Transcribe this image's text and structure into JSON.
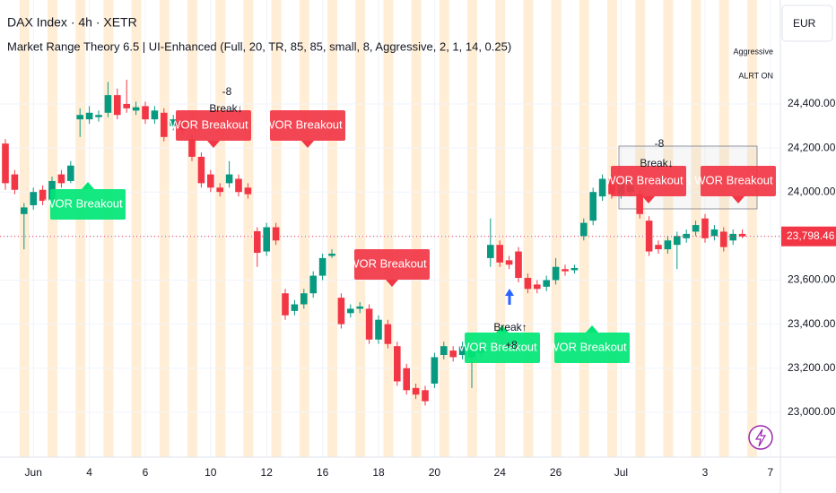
{
  "chart_data": {
    "type": "candlestick",
    "title": "DAX Index · 4h · XETR",
    "subtitle": "Market Range Theory 6.5 | UI-Enhanced (Full, 20, TR, 85, 85, small, 8, Aggressive, 2, 1, 14, 0.25)",
    "currency": "EUR",
    "status_labels": [
      "Aggressive",
      "ALRT ON"
    ],
    "up_color": "#089981",
    "down_color": "#f23645",
    "grid": true,
    "categories": [
      null,
      null,
      null,
      "Jun",
      null,
      null,
      null,
      null,
      null,
      "4",
      null,
      null,
      null,
      null,
      null,
      "6",
      null,
      null,
      null,
      null,
      null,
      null,
      "10",
      null,
      null,
      null,
      null,
      null,
      "12",
      null,
      null,
      null,
      null,
      null,
      "16",
      null,
      null,
      null,
      null,
      null,
      "18",
      null,
      null,
      null,
      null,
      null,
      "20",
      null,
      null,
      null,
      null,
      null,
      null,
      "24",
      null,
      null,
      null,
      null,
      null,
      "26",
      null,
      null,
      null,
      null,
      null,
      null,
      "Jul",
      null,
      null,
      null,
      null,
      null,
      null,
      null,
      null,
      "3",
      null,
      null,
      null,
      null,
      null,
      null,
      "7"
    ],
    "open": [
      24220,
      24080,
      23900,
      23940,
      24010,
      23960,
      24080,
      24050,
      24330,
      24330,
      24340,
      24360,
      24440,
      24400,
      24370,
      24390,
      24330,
      24360,
      24300,
      24310,
      24240,
      24160,
      24080,
      24020,
      24040,
      24060,
      24020,
      23822,
      23730,
      23840,
      23540,
      23460,
      23490,
      23540,
      23620,
      23710,
      23520,
      23450,
      23470,
      23470,
      23330,
      23400,
      23300,
      23200,
      23110,
      23100,
      23130,
      23260,
      23280,
      23260,
      23250,
      23270,
      23700,
      23760,
      23690,
      23730,
      23610,
      23580,
      23570,
      23600,
      23650,
      23645,
      23800,
      23870,
      23980,
      24060,
      23990,
      24000,
      23990,
      23870,
      23760,
      23740,
      23760,
      23790,
      23820,
      23880,
      23800,
      23820,
      23780,
      23810,
      null,
      null,
      null
    ],
    "high": [
      24240,
      24100,
      23950,
      24020,
      24030,
      24070,
      24100,
      24140,
      24380,
      24390,
      24370,
      24500,
      24470,
      24510,
      24410,
      24410,
      24390,
      24380,
      24350,
      24330,
      24260,
      24180,
      24100,
      24040,
      24140,
      24080,
      24040,
      23840,
      23860,
      23860,
      23560,
      23510,
      23560,
      23640,
      23720,
      23740,
      23540,
      23490,
      23500,
      23490,
      23440,
      23420,
      23320,
      23220,
      23130,
      23120,
      23270,
      23320,
      23300,
      23320,
      23300,
      23320,
      23880,
      23780,
      23710,
      23750,
      23630,
      23600,
      23620,
      23700,
      23670,
      23670,
      23880,
      24020,
      24080,
      24080,
      24060,
      24050,
      24010,
      23890,
      23780,
      23800,
      23820,
      23830,
      23870,
      23900,
      23850,
      23840,
      23830,
      23830,
      null,
      null,
      null
    ],
    "low": [
      24010,
      23990,
      23740,
      23920,
      23940,
      23950,
      24020,
      24040,
      24250,
      24310,
      24320,
      24340,
      24330,
      24360,
      24350,
      24310,
      24310,
      24230,
      24280,
      24260,
      24140,
      24020,
      24000,
      23980,
      24020,
      23980,
      23970,
      23660,
      23710,
      23760,
      23420,
      23440,
      23470,
      23520,
      23600,
      23700,
      23380,
      23430,
      23450,
      23310,
      23310,
      23290,
      23120,
      23080,
      23060,
      23030,
      23110,
      23240,
      23230,
      23240,
      23110,
      23250,
      23660,
      23660,
      23650,
      23590,
      23540,
      23540,
      23550,
      23580,
      23620,
      23630,
      23780,
      23850,
      23960,
      23970,
      23970,
      23980,
      23880,
      23710,
      23720,
      23720,
      23650,
      23770,
      23800,
      23770,
      23780,
      23730,
      23760,
      23790,
      null,
      null,
      null
    ],
    "close": [
      24040,
      24010,
      23930,
      24000,
      23960,
      24050,
      24040,
      24120,
      24350,
      24360,
      24350,
      24440,
      24350,
      24380,
      24385,
      24330,
      24370,
      24250,
      24330,
      24280,
      24160,
      24040,
      24020,
      24000,
      24080,
      24000,
      23990,
      23724,
      23840,
      23780,
      23440,
      23490,
      23540,
      23620,
      23700,
      23720,
      23400,
      23470,
      23480,
      23330,
      23420,
      23310,
      23140,
      23100,
      23080,
      23050,
      23250,
      23300,
      23250,
      23300,
      23280,
      23300,
      23760,
      23680,
      23670,
      23610,
      23560,
      23560,
      23600,
      23660,
      23640,
      23655,
      23860,
      24000,
      24060,
      23990,
      24040,
      24030,
      23900,
      23730,
      23740,
      23780,
      23800,
      23810,
      23850,
      23790,
      23830,
      23750,
      23810,
      23798.46,
      null,
      null,
      null
    ],
    "ylim": [
      22796,
      24872
    ],
    "yticks": [
      {
        "value": 23000,
        "label": "23,000.00"
      },
      {
        "value": 23200,
        "label": "23,200.00"
      },
      {
        "value": 23400,
        "label": "23,400.00"
      },
      {
        "value": 23600,
        "label": "23,600.00"
      },
      {
        "value": 23800,
        "label": "23,800.00"
      },
      {
        "value": 24000,
        "label": "24,000.00"
      },
      {
        "value": 24200,
        "label": "24,200.00"
      },
      {
        "value": 24400,
        "label": "24,400.00"
      }
    ],
    "last_price": {
      "value": 23798.46,
      "label": "23,798.46"
    },
    "annotations": [
      {
        "text": "WOR Breakout ↑",
        "color": "#00e676"
      },
      {
        "text": "WOR Breakout ↓",
        "color": "#f23645"
      },
      {
        "text": "WOR Breakout ↓",
        "color": "#f23645"
      },
      {
        "text": "WOR Breakout ↓",
        "color": "#f23645"
      },
      {
        "text": "WOR Breakout ↑",
        "color": "#00e676"
      },
      {
        "text": "WOR Breakout ↑",
        "color": "#00e676"
      },
      {
        "text": "WOR Breakout ↓",
        "color": "#f23645"
      },
      {
        "text": "WOR Breakout ↓",
        "color": "#f23645"
      }
    ],
    "break_labels": [
      "-8",
      "Break↓",
      "Break↑",
      "+8",
      "-8",
      "Break↓"
    ]
  }
}
